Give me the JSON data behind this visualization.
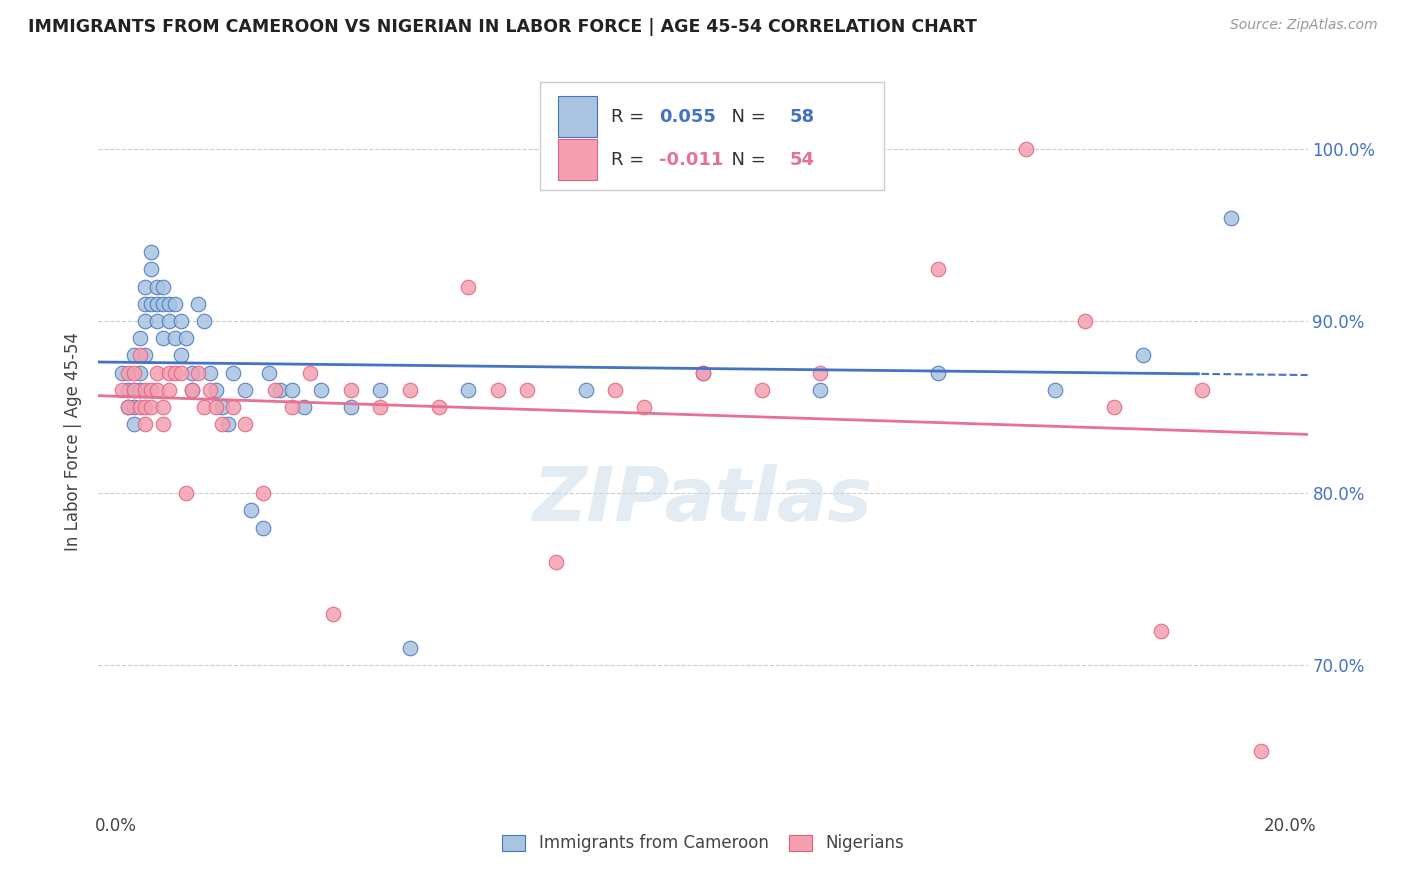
{
  "title": "IMMIGRANTS FROM CAMEROON VS NIGERIAN IN LABOR FORCE | AGE 45-54 CORRELATION CHART",
  "source": "Source: ZipAtlas.com",
  "ylabel": "In Labor Force | Age 45-54",
  "y_ticks": [
    0.7,
    0.8,
    0.9,
    1.0
  ],
  "y_tick_labels": [
    "70.0%",
    "80.0%",
    "90.0%",
    "100.0%"
  ],
  "x_ticks": [
    0.0,
    0.05,
    0.1,
    0.15,
    0.2
  ],
  "xlim": [
    -0.003,
    0.203
  ],
  "ylim": [
    0.615,
    1.045
  ],
  "cameroon_R": 0.055,
  "cameroon_N": 58,
  "nigerian_R": -0.011,
  "nigerian_N": 54,
  "cameroon_color": "#a8c4e0",
  "nigerian_color": "#f4a0b0",
  "cameroon_line_color": "#4472c4",
  "nigerian_line_color": "#e87090",
  "watermark": "ZIPatlas",
  "cameroon_x": [
    0.001,
    0.002,
    0.002,
    0.003,
    0.003,
    0.003,
    0.003,
    0.004,
    0.004,
    0.004,
    0.005,
    0.005,
    0.005,
    0.005,
    0.006,
    0.006,
    0.006,
    0.007,
    0.007,
    0.007,
    0.008,
    0.008,
    0.008,
    0.009,
    0.009,
    0.01,
    0.01,
    0.011,
    0.011,
    0.012,
    0.013,
    0.013,
    0.014,
    0.015,
    0.016,
    0.017,
    0.018,
    0.019,
    0.02,
    0.022,
    0.023,
    0.025,
    0.026,
    0.028,
    0.03,
    0.032,
    0.035,
    0.04,
    0.045,
    0.05,
    0.06,
    0.08,
    0.1,
    0.12,
    0.14,
    0.16,
    0.175,
    0.19
  ],
  "cameroon_y": [
    0.87,
    0.86,
    0.85,
    0.88,
    0.86,
    0.85,
    0.84,
    0.89,
    0.87,
    0.86,
    0.92,
    0.91,
    0.9,
    0.88,
    0.94,
    0.93,
    0.91,
    0.92,
    0.91,
    0.9,
    0.92,
    0.91,
    0.89,
    0.91,
    0.9,
    0.91,
    0.89,
    0.9,
    0.88,
    0.89,
    0.87,
    0.86,
    0.91,
    0.9,
    0.87,
    0.86,
    0.85,
    0.84,
    0.87,
    0.86,
    0.79,
    0.78,
    0.87,
    0.86,
    0.86,
    0.85,
    0.86,
    0.85,
    0.86,
    0.71,
    0.86,
    0.86,
    0.87,
    0.86,
    0.87,
    0.86,
    0.88,
    0.96
  ],
  "nigerian_x": [
    0.001,
    0.002,
    0.002,
    0.003,
    0.003,
    0.004,
    0.004,
    0.005,
    0.005,
    0.005,
    0.006,
    0.006,
    0.007,
    0.007,
    0.008,
    0.008,
    0.009,
    0.009,
    0.01,
    0.011,
    0.012,
    0.013,
    0.014,
    0.015,
    0.016,
    0.017,
    0.018,
    0.02,
    0.022,
    0.025,
    0.027,
    0.03,
    0.033,
    0.037,
    0.04,
    0.045,
    0.05,
    0.055,
    0.06,
    0.065,
    0.07,
    0.075,
    0.085,
    0.09,
    0.1,
    0.11,
    0.12,
    0.14,
    0.155,
    0.165,
    0.17,
    0.178,
    0.185,
    0.195
  ],
  "nigerian_y": [
    0.86,
    0.87,
    0.85,
    0.87,
    0.86,
    0.88,
    0.85,
    0.86,
    0.85,
    0.84,
    0.86,
    0.85,
    0.87,
    0.86,
    0.85,
    0.84,
    0.87,
    0.86,
    0.87,
    0.87,
    0.8,
    0.86,
    0.87,
    0.85,
    0.86,
    0.85,
    0.84,
    0.85,
    0.84,
    0.8,
    0.86,
    0.85,
    0.87,
    0.73,
    0.86,
    0.85,
    0.86,
    0.85,
    0.92,
    0.86,
    0.86,
    0.76,
    0.86,
    0.85,
    0.87,
    0.86,
    0.87,
    0.93,
    1.0,
    0.9,
    0.85,
    0.72,
    0.86,
    0.65
  ]
}
